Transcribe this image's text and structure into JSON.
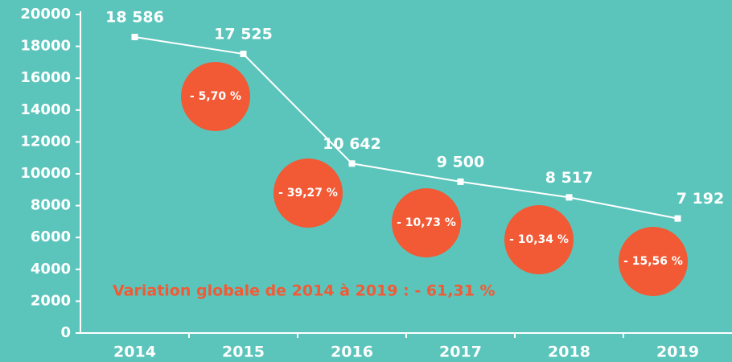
{
  "chart_data": {
    "type": "line",
    "categories": [
      "2014",
      "2015",
      "2016",
      "2017",
      "2018",
      "2019"
    ],
    "series": [
      {
        "color": "#ffffff",
        "values": [
          18586,
          17525,
          10642,
          9500,
          8517,
          7192
        ],
        "value_labels": [
          "18 586",
          "17 525",
          "10 642",
          "9 500",
          "8 517",
          "7 192"
        ]
      }
    ],
    "ylim": [
      0,
      20000
    ],
    "yticks": [
      0,
      2000,
      4000,
      6000,
      8000,
      10000,
      12000,
      14000,
      16000,
      18000,
      20000
    ],
    "variations": [
      "- 5,70 %",
      "- 39,27 %",
      "- 10,73 %",
      "- 10,34 %",
      "- 15,56 %"
    ],
    "variation_color": "#f15a35",
    "annotation": "Variation globale de 2014 à 2019 : - 61,31 %"
  }
}
